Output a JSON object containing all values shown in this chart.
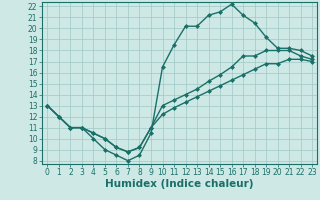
{
  "title": "",
  "xlabel": "Humidex (Indice chaleur)",
  "ylabel": "",
  "bg_color": "#cde8e5",
  "grid_color": "#a0c8c4",
  "line_color": "#1a7068",
  "spine_color": "#1a7068",
  "xlim": [
    -0.5,
    23.4
  ],
  "ylim": [
    7.7,
    22.4
  ],
  "xticks": [
    0,
    1,
    2,
    3,
    4,
    5,
    6,
    7,
    8,
    9,
    10,
    11,
    12,
    13,
    14,
    15,
    16,
    17,
    18,
    19,
    20,
    21,
    22,
    23
  ],
  "yticks": [
    8,
    9,
    10,
    11,
    12,
    13,
    14,
    15,
    16,
    17,
    18,
    19,
    20,
    21,
    22
  ],
  "line1_x": [
    0,
    1,
    2,
    3,
    4,
    5,
    6,
    7,
    8,
    9,
    10,
    11,
    12,
    13,
    14,
    15,
    16,
    17,
    18,
    19,
    20,
    21,
    22,
    23
  ],
  "line1_y": [
    13,
    12,
    11,
    11,
    10,
    9,
    8.5,
    8,
    8.5,
    10.5,
    16.5,
    18.5,
    20.2,
    20.2,
    21.2,
    21.5,
    22.2,
    21.2,
    20.5,
    19.2,
    18.2,
    18.2,
    18,
    17.5
  ],
  "line2_x": [
    0,
    1,
    2,
    3,
    4,
    5,
    6,
    7,
    8,
    9,
    10,
    11,
    12,
    13,
    14,
    15,
    16,
    17,
    18,
    19,
    20,
    21,
    22,
    23
  ],
  "line2_y": [
    13,
    12,
    11,
    11,
    10.5,
    10,
    9.2,
    8.8,
    9.2,
    11,
    13,
    13.5,
    14,
    14.5,
    15.2,
    15.8,
    16.5,
    17.5,
    17.5,
    18,
    18,
    18,
    17.5,
    17.2
  ],
  "line3_x": [
    0,
    1,
    2,
    3,
    4,
    5,
    6,
    7,
    8,
    9,
    10,
    11,
    12,
    13,
    14,
    15,
    16,
    17,
    18,
    19,
    20,
    21,
    22,
    23
  ],
  "line3_y": [
    13,
    12,
    11,
    11,
    10.5,
    10,
    9.2,
    8.8,
    9.2,
    11,
    12.2,
    12.8,
    13.3,
    13.8,
    14.3,
    14.8,
    15.3,
    15.8,
    16.3,
    16.8,
    16.8,
    17.2,
    17.2,
    17
  ],
  "marker": "D",
  "markersize": 2.0,
  "linewidth": 1.0,
  "tick_fontsize": 5.5,
  "xlabel_fontsize": 7.5
}
